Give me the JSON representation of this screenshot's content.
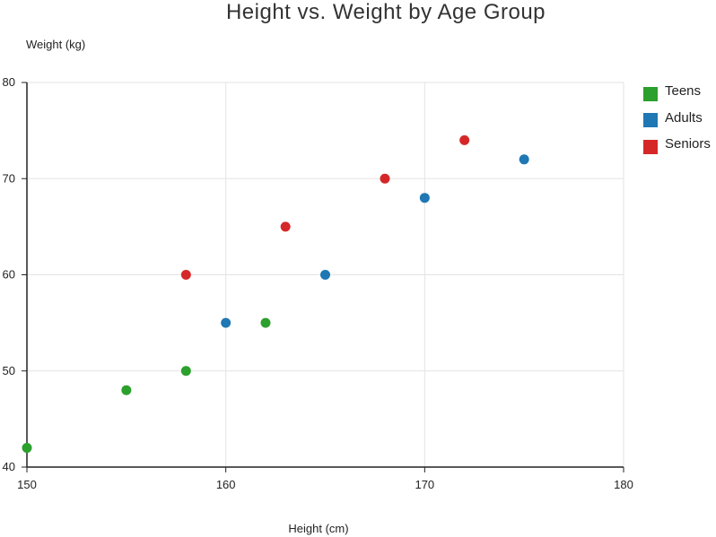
{
  "chart_data": {
    "type": "scatter",
    "title": "Height vs. Weight by Age Group",
    "xlabel": "Height (cm)",
    "ylabel": "Weight (kg)",
    "xlim": [
      150,
      180
    ],
    "ylim": [
      40,
      80
    ],
    "xticks": [
      "150",
      "160",
      "170",
      "180"
    ],
    "yticks": [
      "40",
      "50",
      "60",
      "70",
      "80"
    ],
    "grid": true,
    "legend_position": "right",
    "series": [
      {
        "name": "Teens",
        "color": "#2ca02c",
        "points": [
          {
            "x": 150,
            "y": 42
          },
          {
            "x": 155,
            "y": 48
          },
          {
            "x": 158,
            "y": 50
          },
          {
            "x": 162,
            "y": 55
          }
        ]
      },
      {
        "name": "Adults",
        "color": "#1f77b4",
        "points": [
          {
            "x": 160,
            "y": 55
          },
          {
            "x": 165,
            "y": 60
          },
          {
            "x": 170,
            "y": 68
          },
          {
            "x": 175,
            "y": 72
          }
        ]
      },
      {
        "name": "Seniors",
        "color": "#d62728",
        "points": [
          {
            "x": 158,
            "y": 60
          },
          {
            "x": 163,
            "y": 65
          },
          {
            "x": 168,
            "y": 70
          },
          {
            "x": 172,
            "y": 74
          }
        ]
      }
    ]
  }
}
